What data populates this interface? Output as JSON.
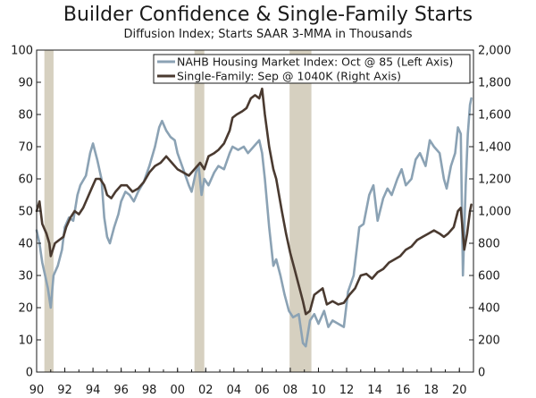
{
  "chart_data": {
    "type": "line",
    "title": "Builder Confidence & Single-Family Starts",
    "subtitle": "Diffusion Index; Starts SAAR 3-MMA in Thousands",
    "xlabel": "",
    "ylabel_left": "",
    "ylabel_right": "",
    "x_range": [
      1990,
      2021
    ],
    "x_ticks": [
      1990,
      1992,
      1994,
      1996,
      1998,
      2000,
      2002,
      2004,
      2006,
      2008,
      2010,
      2012,
      2014,
      2016,
      2018,
      2020
    ],
    "x_tick_labels": [
      "90",
      "92",
      "94",
      "96",
      "98",
      "00",
      "02",
      "04",
      "06",
      "08",
      "10",
      "12",
      "14",
      "16",
      "18",
      "20"
    ],
    "ylim_left": [
      0,
      100
    ],
    "y_ticks_left": [
      0,
      10,
      20,
      30,
      40,
      50,
      60,
      70,
      80,
      90,
      100
    ],
    "y_tick_labels_left": [
      "0",
      "10",
      "20",
      "30",
      "40",
      "50",
      "60",
      "70",
      "80",
      "90",
      "100"
    ],
    "ylim_right": [
      0,
      2000
    ],
    "y_ticks_right": [
      0,
      200,
      400,
      600,
      800,
      1000,
      1200,
      1400,
      1600,
      1800,
      2000
    ],
    "y_tick_labels_right": [
      "0",
      "200",
      "400",
      "600",
      "800",
      "1,000",
      "1,200",
      "1,400",
      "1,600",
      "1,800",
      "2,000"
    ],
    "recessions": [
      [
        1990.55,
        1991.2
      ],
      [
        2001.2,
        2001.9
      ],
      [
        2007.95,
        2009.5
      ]
    ],
    "legend_position": "top-right",
    "series": [
      {
        "name": "NAHB Housing Market Index: Oct @ 85 (Left Axis)",
        "axis": "left",
        "color": "#8ba2b4",
        "points": [
          [
            1990.0,
            44
          ],
          [
            1990.2,
            40
          ],
          [
            1990.4,
            34
          ],
          [
            1990.6,
            30
          ],
          [
            1990.8,
            26
          ],
          [
            1991.0,
            20
          ],
          [
            1991.2,
            30
          ],
          [
            1991.5,
            33
          ],
          [
            1991.8,
            38
          ],
          [
            1992.0,
            45
          ],
          [
            1992.3,
            48
          ],
          [
            1992.6,
            47
          ],
          [
            1992.9,
            55
          ],
          [
            1993.1,
            58
          ],
          [
            1993.5,
            61
          ],
          [
            1993.8,
            68
          ],
          [
            1994.0,
            71
          ],
          [
            1994.3,
            66
          ],
          [
            1994.6,
            60
          ],
          [
            1994.8,
            48
          ],
          [
            1995.0,
            42
          ],
          [
            1995.2,
            40
          ],
          [
            1995.5,
            45
          ],
          [
            1995.8,
            49
          ],
          [
            1996.0,
            53
          ],
          [
            1996.3,
            56
          ],
          [
            1996.6,
            55
          ],
          [
            1996.9,
            53
          ],
          [
            1997.2,
            56
          ],
          [
            1997.6,
            59
          ],
          [
            1998.0,
            64
          ],
          [
            1998.4,
            70
          ],
          [
            1998.7,
            76
          ],
          [
            1998.9,
            78
          ],
          [
            1999.2,
            75
          ],
          [
            1999.5,
            73
          ],
          [
            1999.8,
            72
          ],
          [
            2000.0,
            68
          ],
          [
            2000.4,
            63
          ],
          [
            2000.8,
            58
          ],
          [
            2001.0,
            56
          ],
          [
            2001.3,
            62
          ],
          [
            2001.5,
            64
          ],
          [
            2001.7,
            55
          ],
          [
            2001.9,
            60
          ],
          [
            2002.2,
            58
          ],
          [
            2002.6,
            62
          ],
          [
            2002.9,
            64
          ],
          [
            2003.3,
            63
          ],
          [
            2003.7,
            68
          ],
          [
            2003.9,
            70
          ],
          [
            2004.3,
            69
          ],
          [
            2004.7,
            70
          ],
          [
            2005.0,
            68
          ],
          [
            2005.4,
            70
          ],
          [
            2005.8,
            72
          ],
          [
            2006.0,
            68
          ],
          [
            2006.2,
            60
          ],
          [
            2006.5,
            45
          ],
          [
            2006.8,
            33
          ],
          [
            2007.0,
            35
          ],
          [
            2007.3,
            30
          ],
          [
            2007.6,
            24
          ],
          [
            2007.9,
            19
          ],
          [
            2008.2,
            17
          ],
          [
            2008.6,
            18
          ],
          [
            2008.9,
            9
          ],
          [
            2009.1,
            8
          ],
          [
            2009.4,
            16
          ],
          [
            2009.7,
            18
          ],
          [
            2010.0,
            15
          ],
          [
            2010.4,
            19
          ],
          [
            2010.7,
            14
          ],
          [
            2011.0,
            16
          ],
          [
            2011.4,
            15
          ],
          [
            2011.8,
            14
          ],
          [
            2012.1,
            25
          ],
          [
            2012.5,
            30
          ],
          [
            2012.9,
            45
          ],
          [
            2013.2,
            46
          ],
          [
            2013.6,
            55
          ],
          [
            2013.9,
            58
          ],
          [
            2014.2,
            47
          ],
          [
            2014.6,
            54
          ],
          [
            2014.9,
            57
          ],
          [
            2015.2,
            55
          ],
          [
            2015.6,
            60
          ],
          [
            2015.9,
            63
          ],
          [
            2016.2,
            58
          ],
          [
            2016.6,
            60
          ],
          [
            2016.9,
            66
          ],
          [
            2017.2,
            68
          ],
          [
            2017.6,
            64
          ],
          [
            2017.9,
            72
          ],
          [
            2018.2,
            70
          ],
          [
            2018.6,
            68
          ],
          [
            2018.9,
            60
          ],
          [
            2019.1,
            57
          ],
          [
            2019.4,
            64
          ],
          [
            2019.7,
            68
          ],
          [
            2019.9,
            76
          ],
          [
            2020.1,
            74
          ],
          [
            2020.25,
            30
          ],
          [
            2020.45,
            58
          ],
          [
            2020.6,
            74
          ],
          [
            2020.75,
            83
          ],
          [
            2020.85,
            85
          ]
        ]
      },
      {
        "name": "Single-Family: Sep @ 1040K (Right Axis)",
        "axis": "right",
        "color": "#4a3a30",
        "points": [
          [
            1990.0,
            1000
          ],
          [
            1990.2,
            1060
          ],
          [
            1990.4,
            920
          ],
          [
            1990.7,
            860
          ],
          [
            1990.9,
            800
          ],
          [
            1991.0,
            720
          ],
          [
            1991.3,
            800
          ],
          [
            1991.6,
            820
          ],
          [
            1991.9,
            840
          ],
          [
            1992.1,
            900
          ],
          [
            1992.4,
            960
          ],
          [
            1992.7,
            1000
          ],
          [
            1993.0,
            980
          ],
          [
            1993.3,
            1020
          ],
          [
            1993.6,
            1080
          ],
          [
            1993.9,
            1140
          ],
          [
            1994.2,
            1200
          ],
          [
            1994.5,
            1200
          ],
          [
            1994.8,
            1160
          ],
          [
            1995.0,
            1100
          ],
          [
            1995.3,
            1080
          ],
          [
            1995.6,
            1120
          ],
          [
            1996.0,
            1160
          ],
          [
            1996.4,
            1160
          ],
          [
            1996.8,
            1120
          ],
          [
            1997.2,
            1140
          ],
          [
            1997.6,
            1180
          ],
          [
            1998.0,
            1240
          ],
          [
            1998.4,
            1280
          ],
          [
            1998.8,
            1300
          ],
          [
            1999.2,
            1340
          ],
          [
            1999.6,
            1300
          ],
          [
            2000.0,
            1260
          ],
          [
            2000.4,
            1240
          ],
          [
            2000.8,
            1220
          ],
          [
            2001.2,
            1260
          ],
          [
            2001.6,
            1300
          ],
          [
            2001.9,
            1260
          ],
          [
            2002.2,
            1340
          ],
          [
            2002.6,
            1360
          ],
          [
            2002.9,
            1380
          ],
          [
            2003.3,
            1420
          ],
          [
            2003.7,
            1500
          ],
          [
            2003.9,
            1580
          ],
          [
            2004.2,
            1600
          ],
          [
            2004.6,
            1620
          ],
          [
            2004.9,
            1640
          ],
          [
            2005.2,
            1700
          ],
          [
            2005.5,
            1720
          ],
          [
            2005.8,
            1700
          ],
          [
            2006.0,
            1760
          ],
          [
            2006.2,
            1600
          ],
          [
            2006.5,
            1400
          ],
          [
            2006.8,
            1260
          ],
          [
            2007.0,
            1200
          ],
          [
            2007.4,
            1000
          ],
          [
            2007.7,
            860
          ],
          [
            2008.0,
            740
          ],
          [
            2008.3,
            640
          ],
          [
            2008.6,
            540
          ],
          [
            2008.9,
            440
          ],
          [
            2009.1,
            360
          ],
          [
            2009.4,
            380
          ],
          [
            2009.7,
            480
          ],
          [
            2010.0,
            500
          ],
          [
            2010.3,
            520
          ],
          [
            2010.6,
            420
          ],
          [
            2011.0,
            440
          ],
          [
            2011.4,
            420
          ],
          [
            2011.8,
            430
          ],
          [
            2012.2,
            480
          ],
          [
            2012.6,
            520
          ],
          [
            2013.0,
            600
          ],
          [
            2013.4,
            610
          ],
          [
            2013.8,
            580
          ],
          [
            2014.2,
            620
          ],
          [
            2014.6,
            640
          ],
          [
            2015.0,
            680
          ],
          [
            2015.4,
            700
          ],
          [
            2015.8,
            720
          ],
          [
            2016.2,
            760
          ],
          [
            2016.6,
            780
          ],
          [
            2017.0,
            820
          ],
          [
            2017.4,
            840
          ],
          [
            2017.8,
            860
          ],
          [
            2018.2,
            880
          ],
          [
            2018.6,
            860
          ],
          [
            2018.9,
            840
          ],
          [
            2019.2,
            860
          ],
          [
            2019.6,
            900
          ],
          [
            2019.9,
            1000
          ],
          [
            2020.1,
            1020
          ],
          [
            2020.35,
            760
          ],
          [
            2020.55,
            860
          ],
          [
            2020.75,
            1000
          ],
          [
            2020.85,
            1040
          ]
        ]
      }
    ]
  }
}
